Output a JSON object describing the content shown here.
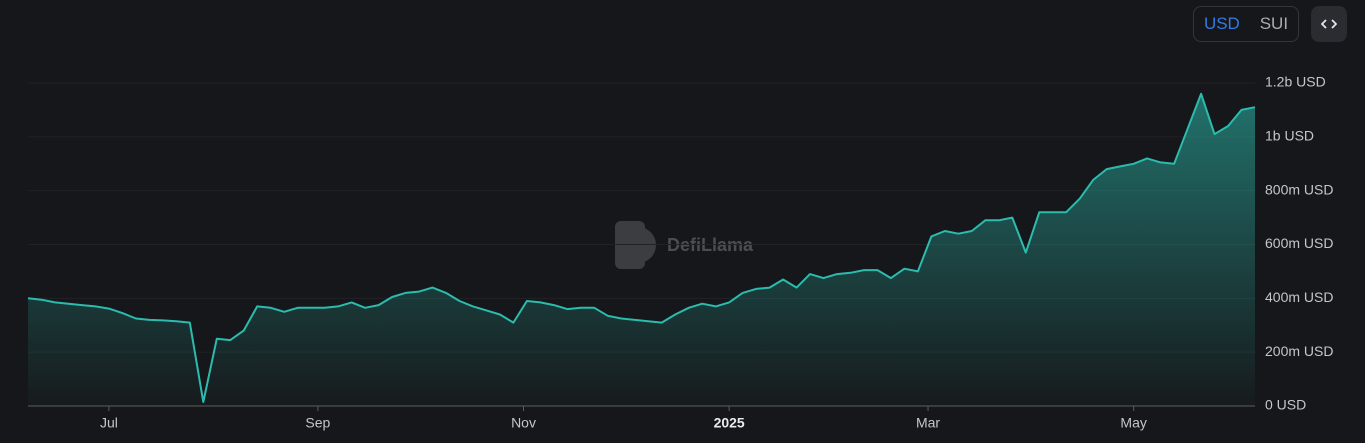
{
  "chart_data": {
    "type": "area",
    "toggle": [
      "USD",
      "SUI"
    ],
    "watermark": "DefiLlama",
    "color": "#2bbcae",
    "grid": true,
    "values": [
      400000000,
      395000000,
      385000000,
      380000000,
      375000000,
      370000000,
      362000000,
      345000000,
      325000000,
      320000000,
      318000000,
      315000000,
      310000000,
      15000000,
      250000000,
      245000000,
      280000000,
      370000000,
      365000000,
      350000000,
      365000000,
      365000000,
      365000000,
      370000000,
      385000000,
      365000000,
      375000000,
      405000000,
      420000000,
      425000000,
      440000000,
      420000000,
      390000000,
      370000000,
      355000000,
      340000000,
      310000000,
      390000000,
      385000000,
      375000000,
      360000000,
      365000000,
      365000000,
      335000000,
      325000000,
      320000000,
      315000000,
      310000000,
      340000000,
      365000000,
      380000000,
      370000000,
      385000000,
      420000000,
      435000000,
      440000000,
      470000000,
      440000000,
      490000000,
      475000000,
      490000000,
      495000000,
      505000000,
      505000000,
      475000000,
      510000000,
      500000000,
      630000000,
      650000000,
      640000000,
      650000000,
      690000000,
      690000000,
      700000000,
      570000000,
      720000000,
      720000000,
      720000000,
      770000000,
      840000000,
      880000000,
      890000000,
      900000000,
      920000000,
      905000000,
      900000000,
      1030000000,
      1160000000,
      1010000000,
      1040000000,
      1100000000,
      1110000000
    ],
    "xlim": [
      0,
      91
    ],
    "xticks": [
      {
        "value": 6,
        "label": "Jul"
      },
      {
        "value": 21.5,
        "label": "Sep"
      },
      {
        "value": 36.75,
        "label": "Nov"
      },
      {
        "value": 52,
        "label": "2025"
      },
      {
        "value": 66.75,
        "label": "Mar"
      },
      {
        "value": 82,
        "label": "May"
      }
    ],
    "ylim": [
      0,
      1200000000
    ],
    "yticks": [
      {
        "value": 0,
        "label": "0 USD"
      },
      {
        "value": 200000000,
        "label": "200m USD"
      },
      {
        "value": 400000000,
        "label": "400m USD"
      },
      {
        "value": 600000000,
        "label": "600m USD"
      },
      {
        "value": 800000000,
        "label": "800m USD"
      },
      {
        "value": 1000000000,
        "label": "1b USD"
      },
      {
        "value": 1200000000,
        "label": "1.2b USD"
      }
    ]
  }
}
